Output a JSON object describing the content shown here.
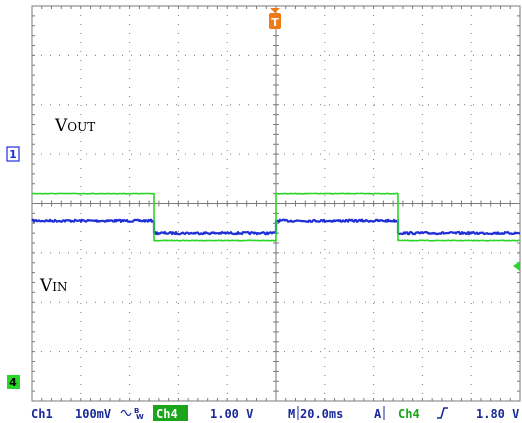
{
  "colors": {
    "ch1": "#1f2fd8",
    "ch4": "#2ad62a",
    "trigger": "#f07a18",
    "grid": "#7a7a7a",
    "status_text": "#1a2a9a",
    "ch4_box": "#1aa51a"
  },
  "labels": {
    "vout_main": "V",
    "vout_sub": "OUT",
    "vin_main": "V",
    "vin_sub": "IN"
  },
  "markers": {
    "ch1_marker": "1",
    "ch4_marker": "4",
    "trigger_marker": "T"
  },
  "status": {
    "ch1_label": "Ch1",
    "ch1_scale": "100mV",
    "ch1_coupling_icon": "ac-coupling-bw-icon",
    "ch4_label": "Ch4",
    "ch4_scale": "1.00 V",
    "timebase_prefix": "M",
    "timebase": "20.0ms",
    "trigger_mode": "A",
    "trigger_source": "Ch4",
    "trigger_slope_icon": "rising-edge-icon",
    "trigger_level": "1.80 V"
  },
  "chart_data": {
    "type": "line",
    "title": "",
    "xlabel": "",
    "ylabel": "",
    "x_unit": "ms",
    "grid": true,
    "divisions": {
      "x": 10,
      "y": 8
    },
    "x_range": [
      -100,
      100
    ],
    "series": [
      {
        "name": "VOUT",
        "channel": "Ch1",
        "x": [
          -100,
          -50,
          -50,
          0,
          0,
          50,
          50,
          100
        ],
        "values": [
          -0.35,
          -0.35,
          -0.6,
          -0.6,
          -0.35,
          -0.35,
          -0.6,
          -0.6
        ]
      },
      {
        "name": "VIN",
        "channel": "Ch4",
        "x": [
          -100,
          -50,
          -50,
          0,
          0,
          50,
          50,
          100
        ],
        "values": [
          0.2,
          0.2,
          -0.75,
          -0.75,
          0.2,
          0.2,
          -0.75,
          -0.75
        ]
      }
    ]
  }
}
